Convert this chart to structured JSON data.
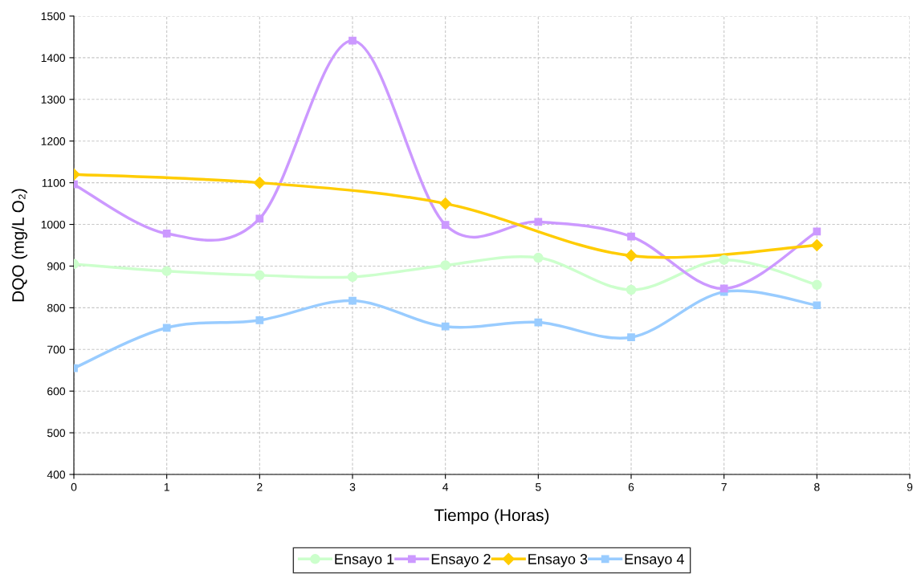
{
  "chart_data": {
    "type": "line",
    "xlabel": "Tiempo (Horas)",
    "ylabel": "DQO (mg/L O₂)",
    "x": [
      0,
      1,
      2,
      3,
      4,
      5,
      6,
      7,
      8
    ],
    "series": [
      {
        "name": "Ensayo 1",
        "color": "#ccffcc",
        "marker": "circle",
        "values": [
          905,
          888,
          878,
          874,
          902,
          920,
          843,
          915,
          855
        ]
      },
      {
        "name": "Ensayo 2",
        "color": "#cc99ff",
        "marker": "square",
        "values": [
          1096,
          978,
          1014,
          1441,
          999,
          1006,
          971,
          846,
          983
        ]
      },
      {
        "name": "Ensayo 3",
        "color": "#ffcc00",
        "marker": "diamond",
        "x": [
          0,
          2,
          4,
          6,
          8
        ],
        "values": [
          1120,
          1100,
          1050,
          925,
          950
        ]
      },
      {
        "name": "Ensayo 4",
        "color": "#99ccff",
        "marker": "square",
        "values": [
          655,
          752,
          770,
          817,
          755,
          765,
          729,
          838,
          806
        ]
      }
    ],
    "xlim": [
      0,
      9
    ],
    "xticks": [
      0,
      1,
      2,
      3,
      4,
      5,
      6,
      7,
      8,
      9
    ],
    "ylim": [
      400,
      1500
    ],
    "yticks": [
      400,
      500,
      600,
      700,
      800,
      900,
      1000,
      1100,
      1200,
      1300,
      1400,
      1500
    ],
    "grid": true,
    "legend": "bottom",
    "line_style": "solid"
  }
}
